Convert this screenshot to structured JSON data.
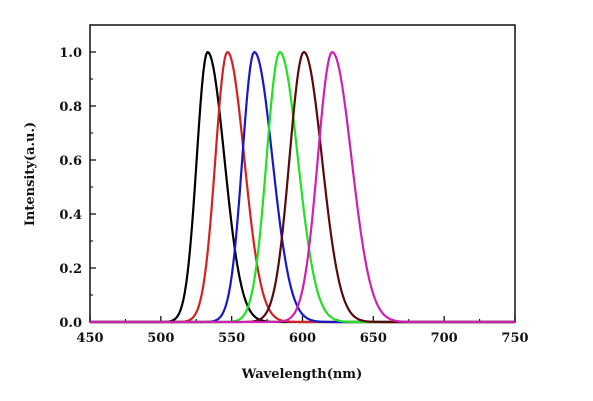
{
  "chart_data": {
    "type": "line",
    "xlabel": "Wavelength(nm)",
    "ylabel": "Intensity(a.u.)",
    "xlim": [
      450,
      750
    ],
    "ylim": [
      0,
      1.1
    ],
    "x_ticks": [
      450,
      500,
      550,
      600,
      650,
      700,
      750
    ],
    "y_ticks": [
      0.0,
      0.2,
      0.4,
      0.6,
      0.8,
      1.0
    ],
    "x_tick_labels": [
      "450",
      "500",
      "550",
      "600",
      "650",
      "700",
      "750"
    ],
    "y_tick_labels": [
      "0.0",
      "0.2",
      "0.4",
      "0.6",
      "0.8",
      "1.0"
    ],
    "grid": false,
    "legend": "none",
    "series": [
      {
        "color": "#000000",
        "peak_x": 533,
        "peak_y": 1.0,
        "fwhm_left": 18,
        "fwhm_right": 28
      },
      {
        "color": "#d42020",
        "peak_x": 547,
        "peak_y": 1.0,
        "fwhm_left": 20,
        "fwhm_right": 28
      },
      {
        "color": "#1818c8",
        "peak_x": 566,
        "peak_y": 1.0,
        "fwhm_left": 20,
        "fwhm_right": 30
      },
      {
        "color": "#22e022",
        "peak_x": 584,
        "peak_y": 1.0,
        "fwhm_left": 22,
        "fwhm_right": 30
      },
      {
        "color": "#5a0a0a",
        "peak_x": 601,
        "peak_y": 1.0,
        "fwhm_left": 24,
        "fwhm_right": 30
      },
      {
        "color": "#d020b0",
        "peak_x": 621,
        "peak_y": 1.0,
        "fwhm_left": 24,
        "fwhm_right": 32
      }
    ]
  }
}
